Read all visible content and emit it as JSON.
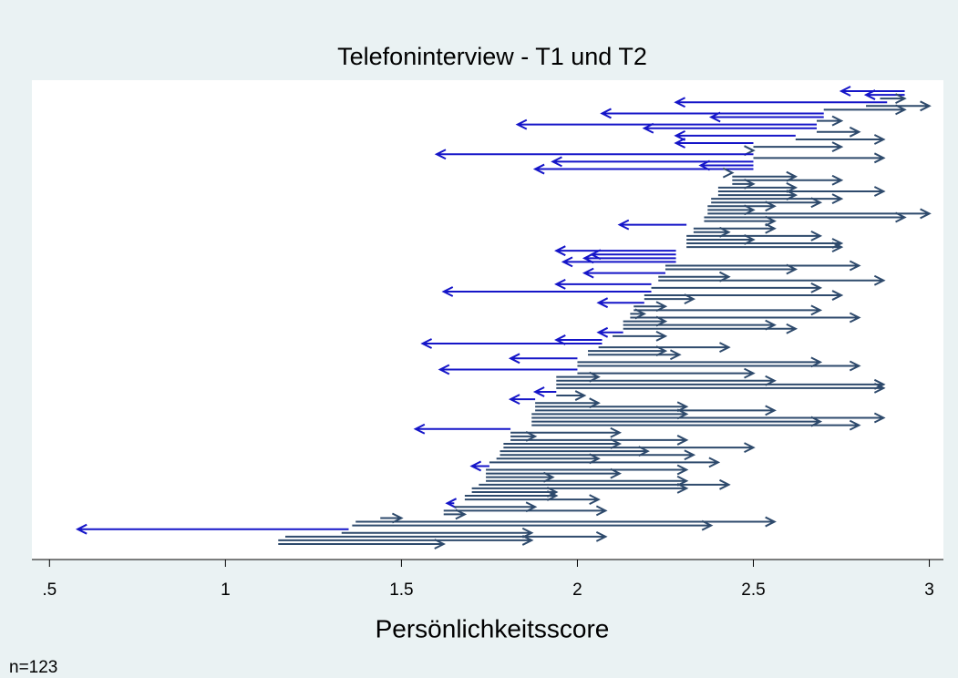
{
  "chart_data": {
    "type": "arrow",
    "title": "Telefoninterview - T1 und T2",
    "xlabel": "Persönlichkeitsscore",
    "note": "n=123",
    "xlim": [
      0.45,
      3.04
    ],
    "xticks": [
      {
        "value": 0.5,
        "label": ".5"
      },
      1,
      1.5,
      2,
      2.5,
      3
    ],
    "colors": {
      "decrease": "#1515c8",
      "increase": "#2e4a6c"
    },
    "start": [
      2.93,
      2.93,
      2.86,
      2.88,
      2.82,
      2.7,
      2.7,
      2.7,
      2.68,
      2.68,
      2.68,
      2.68,
      2.62,
      2.62,
      2.5,
      2.5,
      2.5,
      2.5,
      2.5,
      2.5,
      2.5,
      2.5,
      2.44,
      2.44,
      2.44,
      2.44,
      2.4,
      2.4,
      2.4,
      2.38,
      2.38,
      2.37,
      2.37,
      2.37,
      2.36,
      2.36,
      2.31,
      2.33,
      2.33,
      2.31,
      2.31,
      2.31,
      2.31,
      2.28,
      2.28,
      2.28,
      2.28,
      2.25,
      2.25,
      2.25,
      2.23,
      2.23,
      2.21,
      2.21,
      2.21,
      2.19,
      2.19,
      2.19,
      2.16,
      2.16,
      2.15,
      2.15,
      2.13,
      2.13,
      2.13,
      2.13,
      2.1,
      2.07,
      2.07,
      2.06,
      2.03,
      2.03,
      2.0,
      2.0,
      2.0,
      2.0,
      2.0,
      1.94,
      1.94,
      1.94,
      1.94,
      1.94,
      1.94,
      1.88,
      1.88,
      1.88,
      1.88,
      1.87,
      1.87,
      1.87,
      1.87,
      1.81,
      1.81,
      1.81,
      1.81,
      1.79,
      1.79,
      1.78,
      1.78,
      1.77,
      1.75,
      1.75,
      1.74,
      1.74,
      1.74,
      1.74,
      1.72,
      1.7,
      1.7,
      1.68,
      1.68,
      1.65,
      1.65,
      1.62,
      1.62,
      1.44,
      1.37,
      1.36,
      1.35,
      1.33,
      1.17,
      1.15,
      1.15
    ],
    "end": [
      2.75,
      2.82,
      2.93,
      2.28,
      3.0,
      2.93,
      2.07,
      2.38,
      2.75,
      1.83,
      2.19,
      2.8,
      2.28,
      2.87,
      2.28,
      2.75,
      2.5,
      1.6,
      2.87,
      1.93,
      2.35,
      1.88,
      2.44,
      2.62,
      2.75,
      2.5,
      2.62,
      2.87,
      2.62,
      2.75,
      2.69,
      2.56,
      2.5,
      3.0,
      2.93,
      2.56,
      2.12,
      2.56,
      2.43,
      2.69,
      2.5,
      2.75,
      2.75,
      1.94,
      2.04,
      2.02,
      1.96,
      2.8,
      2.62,
      2.02,
      2.43,
      2.87,
      1.94,
      2.69,
      1.62,
      2.75,
      2.33,
      2.06,
      2.25,
      2.69,
      2.19,
      2.8,
      2.25,
      2.56,
      2.62,
      2.06,
      2.25,
      1.94,
      1.56,
      2.43,
      2.25,
      2.29,
      1.81,
      2.69,
      2.8,
      1.61,
      2.5,
      2.06,
      2.56,
      2.87,
      2.87,
      1.88,
      2.02,
      1.81,
      2.06,
      2.31,
      2.56,
      2.31,
      2.87,
      2.69,
      2.8,
      1.54,
      2.12,
      1.88,
      2.31,
      2.12,
      2.5,
      2.2,
      2.33,
      2.06,
      2.4,
      1.7,
      2.31,
      2.12,
      1.93,
      2.31,
      2.43,
      2.31,
      1.94,
      1.94,
      2.06,
      1.63,
      1.88,
      2.08,
      1.68,
      1.5,
      2.56,
      2.38,
      0.58,
      1.87,
      2.08,
      1.87,
      1.62
    ]
  }
}
